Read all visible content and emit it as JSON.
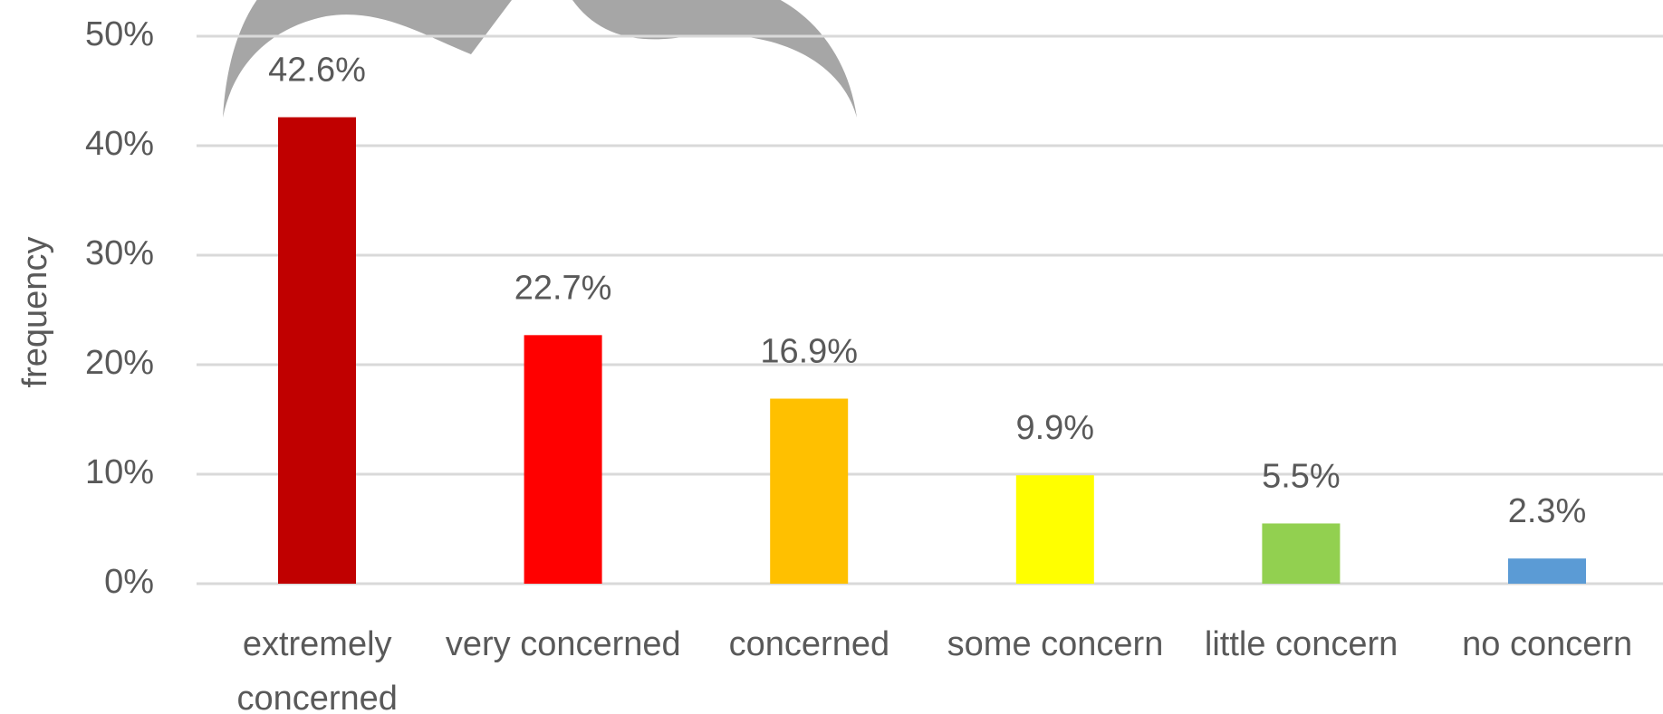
{
  "chart_data": {
    "type": "bar",
    "y_label": "frequency",
    "categories": [
      "extremely concerned",
      "very concerned",
      "concerned",
      "some concern",
      "little concern",
      "no concern"
    ],
    "values": [
      42.6,
      22.7,
      16.9,
      9.9,
      5.5,
      2.3
    ],
    "value_labels": [
      "42.6%",
      "22.7%",
      "16.9%",
      "9.9%",
      "5.5%",
      "2.3%"
    ],
    "colors": [
      "#c00000",
      "#ff0000",
      "#ffc000",
      "#ffff00",
      "#92d050",
      "#5b9bd5"
    ],
    "ylim": [
      0,
      50
    ],
    "yticks": [
      {
        "value": 0,
        "label": "0%"
      },
      {
        "value": 10,
        "label": "10%"
      },
      {
        "value": 20,
        "label": "20%"
      },
      {
        "value": 30,
        "label": "30%"
      },
      {
        "value": 40,
        "label": "40%"
      },
      {
        "value": 50,
        "label": "50%"
      }
    ],
    "grid": true
  }
}
